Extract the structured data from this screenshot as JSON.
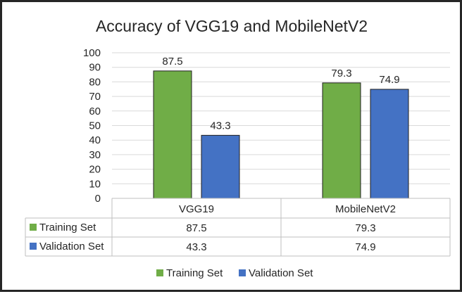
{
  "chart_data": {
    "type": "bar",
    "title": "Accuracy of VGG19 and MobileNetV2",
    "xlabel": "",
    "ylabel": "",
    "categories": [
      "VGG19",
      "MobileNetV2"
    ],
    "series": [
      {
        "name": "Training Set",
        "values": [
          87.5,
          79.3
        ],
        "color": "#70AD47"
      },
      {
        "name": "Validation Set",
        "values": [
          43.3,
          74.9
        ],
        "color": "#4472C4"
      }
    ],
    "ylim": [
      0,
      100
    ],
    "yticks": [
      0,
      10,
      20,
      30,
      40,
      50,
      60,
      70,
      80,
      90,
      100
    ],
    "grid": true,
    "data_labels": true,
    "data_table": true,
    "legend": "bottom"
  }
}
